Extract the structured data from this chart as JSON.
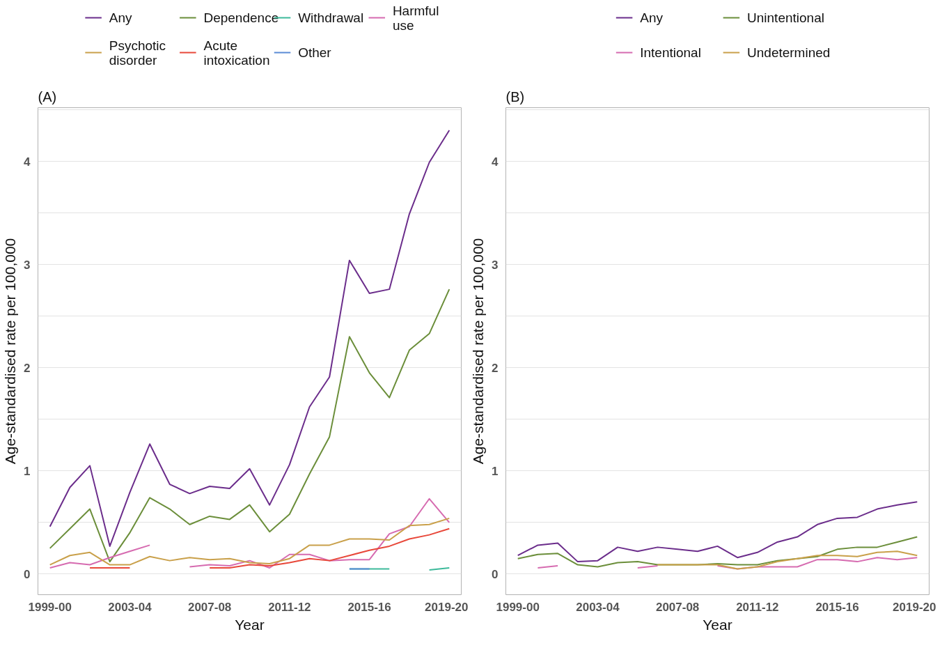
{
  "chart_data": [
    {
      "type": "line",
      "title": "(A)",
      "xlabel": "Year",
      "ylabel": "Age-standardised rate per 100,000",
      "categories": [
        "1999-00",
        null,
        null,
        null,
        "2003-04",
        null,
        null,
        null,
        "2007-08",
        null,
        null,
        null,
        "2011-12",
        null,
        null,
        null,
        "2015-16",
        null,
        null,
        null,
        "2019-20"
      ],
      "ylim": [
        -0.2,
        4.52
      ],
      "yticks": [
        0,
        {
          "value": 0.5,
          "label": null
        },
        1,
        {
          "value": 1.5,
          "label": null
        },
        2,
        {
          "value": 2.5,
          "label": null
        },
        3,
        {
          "value": 3.5,
          "label": null
        },
        4,
        {
          "value": 4.5,
          "label": null
        }
      ],
      "grid": "y",
      "legend": "top",
      "line_style": "solid",
      "series": [
        {
          "name": "Any",
          "color": "#6b2d8b",
          "values": [
            0.46,
            0.84,
            1.05,
            0.27,
            0.79,
            1.26,
            0.87,
            0.78,
            0.85,
            0.83,
            1.02,
            0.67,
            1.06,
            1.62,
            1.91,
            3.04,
            2.72,
            2.76,
            3.49,
            3.99,
            4.3
          ]
        },
        {
          "name": "Dependence",
          "color": "#6b8e3a",
          "values": [
            0.25,
            0.44,
            0.63,
            0.12,
            0.4,
            0.74,
            0.63,
            0.48,
            0.56,
            0.53,
            0.67,
            0.41,
            0.58,
            0.97,
            1.33,
            2.3,
            1.95,
            1.71,
            2.17,
            2.33,
            2.76
          ]
        },
        {
          "name": "Withdrawal",
          "color": "#3cb99a",
          "values": [
            null,
            null,
            null,
            null,
            null,
            null,
            null,
            null,
            null,
            null,
            null,
            null,
            null,
            null,
            null,
            0.05,
            0.05,
            0.05,
            null,
            0.04,
            0.06
          ]
        },
        {
          "name": "Harmful use",
          "color": "#d66bb0",
          "values": [
            0.06,
            0.11,
            0.09,
            0.16,
            0.22,
            0.28,
            null,
            0.07,
            0.09,
            0.08,
            0.13,
            0.06,
            0.19,
            0.19,
            0.13,
            0.14,
            0.14,
            0.39,
            0.46,
            0.73,
            0.5
          ]
        },
        {
          "name": "Psychotic disorder",
          "color": "#c9a04a",
          "values": [
            0.09,
            0.18,
            0.21,
            0.09,
            0.09,
            0.17,
            0.13,
            0.16,
            0.14,
            0.15,
            0.11,
            0.1,
            0.15,
            0.28,
            0.28,
            0.34,
            0.34,
            0.33,
            0.47,
            0.48,
            0.54
          ]
        },
        {
          "name": "Acute intoxication",
          "color": "#e8483a",
          "values": [
            null,
            null,
            0.06,
            0.06,
            0.06,
            null,
            null,
            null,
            0.06,
            0.06,
            0.09,
            0.08,
            0.11,
            0.15,
            0.13,
            0.18,
            0.23,
            0.27,
            0.34,
            0.38,
            0.44
          ]
        },
        {
          "name": "Other",
          "color": "#5b8bd6",
          "values": [
            null,
            null,
            null,
            null,
            null,
            null,
            null,
            null,
            null,
            null,
            null,
            null,
            null,
            null,
            null,
            0.05,
            0.05,
            null,
            null,
            null,
            null
          ]
        }
      ]
    },
    {
      "type": "line",
      "title": "(B)",
      "xlabel": "Year",
      "ylabel": "Age-standardised rate per 100,000",
      "categories": [
        "1999-00",
        null,
        null,
        null,
        "2003-04",
        null,
        null,
        null,
        "2007-08",
        null,
        null,
        null,
        "2011-12",
        null,
        null,
        null,
        "2015-16",
        null,
        null,
        null,
        "2019-20"
      ],
      "ylim": [
        -0.2,
        4.52
      ],
      "yticks": [
        0,
        {
          "value": 0.5,
          "label": null
        },
        1,
        {
          "value": 1.5,
          "label": null
        },
        2,
        {
          "value": 2.5,
          "label": null
        },
        3,
        {
          "value": 3.5,
          "label": null
        },
        4,
        {
          "value": 4.5,
          "label": null
        }
      ],
      "grid": "y",
      "legend": "top",
      "line_style": "solid",
      "series": [
        {
          "name": "Any",
          "color": "#6b2d8b",
          "values": [
            0.18,
            0.28,
            0.3,
            0.12,
            0.13,
            0.26,
            0.22,
            0.26,
            0.24,
            0.22,
            0.27,
            0.16,
            0.21,
            0.31,
            0.36,
            0.48,
            0.54,
            0.55,
            0.63,
            0.67,
            0.7
          ]
        },
        {
          "name": "Unintentional",
          "color": "#6b8e3a",
          "values": [
            0.15,
            0.19,
            0.2,
            0.09,
            0.07,
            0.11,
            0.12,
            0.09,
            0.09,
            0.09,
            0.1,
            0.09,
            0.09,
            0.13,
            0.15,
            0.17,
            0.24,
            0.26,
            0.26,
            0.31,
            0.36
          ]
        },
        {
          "name": "Intentional",
          "color": "#d66bb0",
          "values": [
            null,
            0.06,
            0.08,
            null,
            null,
            null,
            0.06,
            0.08,
            null,
            null,
            0.08,
            0.05,
            0.07,
            0.07,
            0.07,
            0.14,
            0.14,
            0.12,
            0.16,
            0.14,
            0.16
          ]
        },
        {
          "name": "Undetermined",
          "color": "#c9a04a",
          "values": [
            null,
            null,
            null,
            null,
            null,
            null,
            null,
            0.09,
            0.09,
            0.09,
            0.09,
            0.05,
            0.07,
            0.12,
            0.15,
            0.18,
            0.18,
            0.17,
            0.21,
            0.22,
            0.18
          ]
        }
      ]
    }
  ]
}
